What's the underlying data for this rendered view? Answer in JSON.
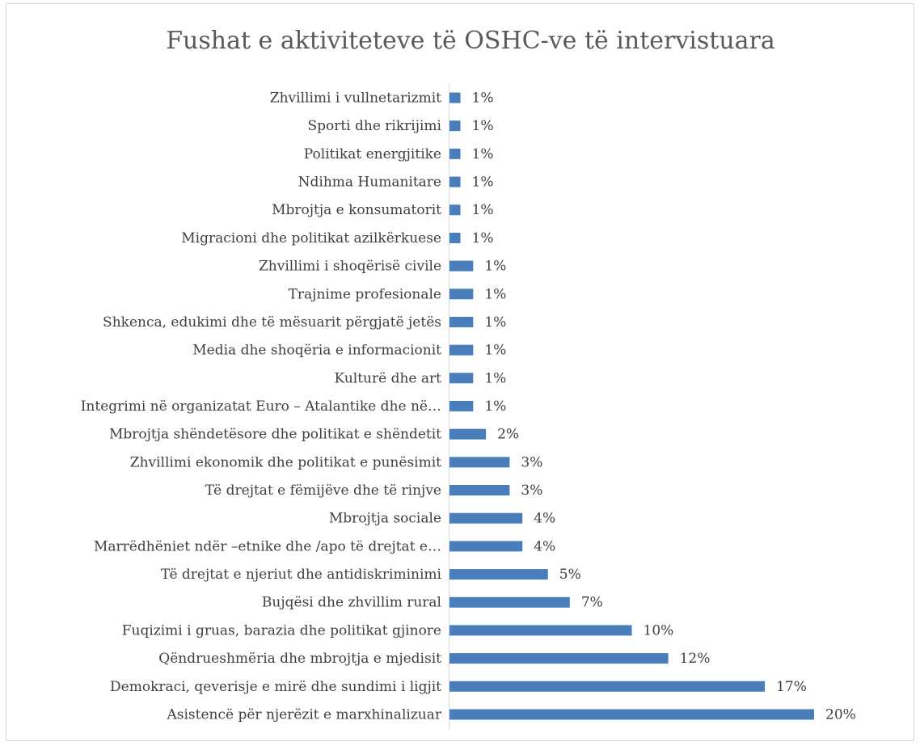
{
  "chart_data": {
    "type": "hbar",
    "title": "Fushat e aktiviteteve të OSHC-ve të intervistuara",
    "categories": [
      "Zhvillimi i vullnetarizmit",
      "Sporti dhe rikrijimi",
      "Politikat energjitike",
      "Ndihma Humanitare",
      "Mbrojtja e konsumatorit",
      "Migracioni dhe politikat azilkërkuese",
      "Zhvillimi i shoqërisë civile",
      "Trajnime profesionale",
      "Shkenca, edukimi dhe të mësuarit përgjatë jetës",
      "Media dhe shoqëria e informacionit",
      "Kulturë dhe art",
      "Integrimi në organizatat Euro – Atalantike dhe në…",
      "Mbrojtja shëndetësore dhe politikat e shëndetit",
      "Zhvillimi ekonomik dhe politikat e punësimit",
      "Të drejtat e fëmijëve dhe të rinjve",
      "Mbrojtja sociale",
      "Marrëdhëniet ndër –etnike dhe /apo të drejtat e…",
      "Të drejtat e njeriut dhe antidiskriminimi",
      "Bujqësi dhe zhvillim rural",
      "Fuqizimi i gruas, barazia dhe politikat gjinore",
      "Qëndrueshmëria dhe mbrojtja e mjedisit",
      "Demokraci, qeverisje e mirë dhe sundimi i ligjit",
      "Asistencë për njerëzit e marxhinalizuar"
    ],
    "values": [
      0.6,
      0.6,
      0.6,
      0.6,
      0.6,
      0.6,
      1.3,
      1.3,
      1.3,
      1.3,
      1.3,
      1.3,
      2.0,
      3.3,
      3.3,
      4.0,
      4.0,
      5.4,
      6.6,
      10.0,
      12.0,
      17.3,
      20.0
    ],
    "value_labels": [
      "1%",
      "1%",
      "1%",
      "1%",
      "1%",
      "1%",
      "1%",
      "1%",
      "1%",
      "1%",
      "1%",
      "1%",
      "2%",
      "3%",
      "3%",
      "4%",
      "4%",
      "5%",
      "7%",
      "10%",
      "12%",
      "17%",
      "20%"
    ],
    "color": "#4a7ebb",
    "xlim": [
      0,
      20
    ]
  }
}
